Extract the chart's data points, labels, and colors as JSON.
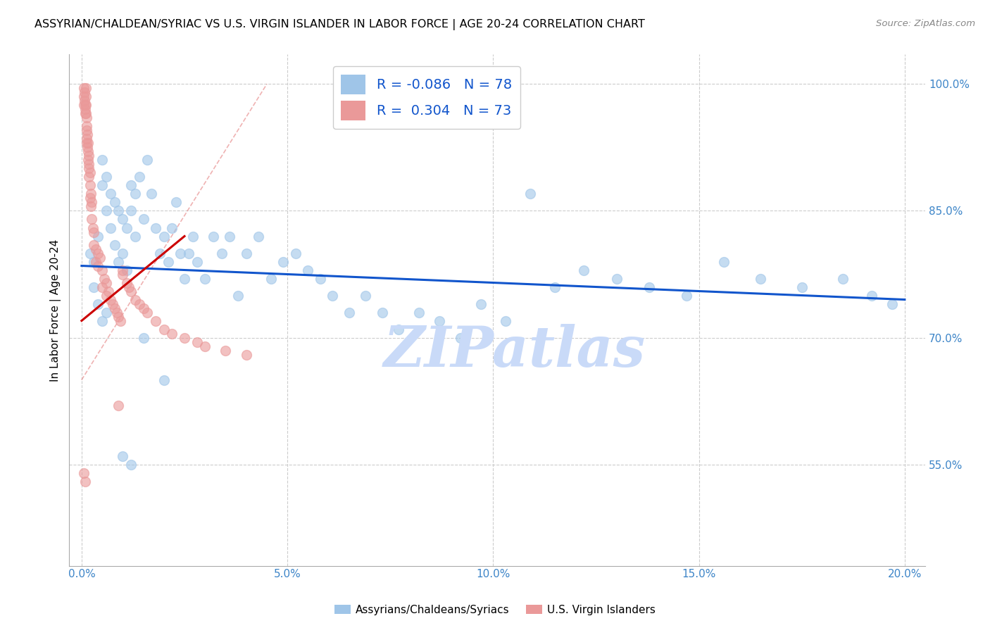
{
  "title": "ASSYRIAN/CHALDEAN/SYRIAC VS U.S. VIRGIN ISLANDER IN LABOR FORCE | AGE 20-24 CORRELATION CHART",
  "source": "Source: ZipAtlas.com",
  "xlabel_vals": [
    0.0,
    5.0,
    10.0,
    15.0,
    20.0
  ],
  "ylabel_vals": [
    55.0,
    70.0,
    85.0,
    100.0
  ],
  "ylabel_label": "In Labor Force | Age 20-24",
  "xlim": [
    -0.3,
    20.5
  ],
  "ylim": [
    43.0,
    103.5
  ],
  "R_blue": -0.086,
  "N_blue": 78,
  "R_pink": 0.304,
  "N_pink": 73,
  "blue_color": "#9fc5e8",
  "pink_color": "#ea9999",
  "trend_blue": "#1155cc",
  "trend_pink": "#cc0000",
  "dashed_color": "#e06666",
  "watermark": "ZIPatlas",
  "watermark_color": "#c9daf8",
  "legend_r_color": "#1155cc",
  "blue_scatter_x": [
    0.2,
    0.3,
    0.4,
    0.5,
    0.5,
    0.6,
    0.6,
    0.7,
    0.7,
    0.8,
    0.8,
    0.9,
    0.9,
    1.0,
    1.0,
    1.1,
    1.1,
    1.2,
    1.2,
    1.3,
    1.3,
    1.4,
    1.5,
    1.6,
    1.7,
    1.8,
    1.9,
    2.0,
    2.1,
    2.2,
    2.3,
    2.4,
    2.5,
    2.6,
    2.7,
    2.8,
    3.0,
    3.2,
    3.4,
    3.6,
    3.8,
    4.0,
    4.3,
    4.6,
    4.9,
    5.2,
    5.5,
    5.8,
    6.1,
    6.5,
    6.9,
    7.3,
    7.7,
    8.2,
    8.7,
    9.2,
    9.7,
    10.3,
    10.9,
    11.5,
    12.2,
    13.0,
    13.8,
    14.7,
    15.6,
    16.5,
    17.5,
    18.5,
    19.2,
    19.7,
    0.3,
    0.4,
    0.5,
    0.6,
    1.0,
    1.2,
    1.5,
    2.0
  ],
  "blue_scatter_y": [
    80.0,
    79.0,
    82.0,
    91.0,
    88.0,
    89.0,
    85.0,
    87.0,
    83.0,
    86.0,
    81.0,
    85.0,
    79.0,
    84.0,
    80.0,
    83.0,
    78.0,
    88.0,
    85.0,
    87.0,
    82.0,
    89.0,
    84.0,
    91.0,
    87.0,
    83.0,
    80.0,
    82.0,
    79.0,
    83.0,
    86.0,
    80.0,
    77.0,
    80.0,
    82.0,
    79.0,
    77.0,
    82.0,
    80.0,
    82.0,
    75.0,
    80.0,
    82.0,
    77.0,
    79.0,
    80.0,
    78.0,
    77.0,
    75.0,
    73.0,
    75.0,
    73.0,
    71.0,
    73.0,
    72.0,
    70.0,
    74.0,
    72.0,
    87.0,
    76.0,
    78.0,
    77.0,
    76.0,
    75.0,
    79.0,
    77.0,
    76.0,
    77.0,
    75.0,
    74.0,
    76.0,
    74.0,
    72.0,
    73.0,
    56.0,
    55.0,
    70.0,
    65.0
  ],
  "pink_scatter_x": [
    0.05,
    0.05,
    0.05,
    0.07,
    0.07,
    0.08,
    0.08,
    0.09,
    0.1,
    0.1,
    0.1,
    0.1,
    0.12,
    0.12,
    0.12,
    0.13,
    0.13,
    0.14,
    0.14,
    0.15,
    0.15,
    0.15,
    0.17,
    0.17,
    0.18,
    0.18,
    0.2,
    0.2,
    0.2,
    0.22,
    0.22,
    0.25,
    0.25,
    0.28,
    0.3,
    0.3,
    0.35,
    0.35,
    0.4,
    0.4,
    0.45,
    0.5,
    0.5,
    0.55,
    0.6,
    0.6,
    0.65,
    0.7,
    0.75,
    0.8,
    0.85,
    0.9,
    0.95,
    1.0,
    1.0,
    1.1,
    1.15,
    1.2,
    1.3,
    1.4,
    1.5,
    1.6,
    1.8,
    2.0,
    2.2,
    2.5,
    2.8,
    3.0,
    3.5,
    4.0,
    0.05,
    0.08,
    0.9
  ],
  "pink_scatter_y": [
    99.5,
    98.5,
    97.5,
    99.0,
    98.0,
    97.5,
    96.5,
    97.0,
    99.5,
    98.5,
    97.5,
    96.5,
    96.0,
    94.5,
    93.0,
    95.0,
    93.5,
    94.0,
    92.5,
    93.0,
    92.0,
    91.0,
    91.5,
    90.0,
    90.5,
    89.0,
    89.5,
    88.0,
    86.5,
    87.0,
    85.5,
    86.0,
    84.0,
    83.0,
    82.5,
    81.0,
    80.5,
    79.0,
    80.0,
    78.5,
    79.5,
    78.0,
    76.0,
    77.0,
    76.5,
    75.0,
    75.5,
    74.5,
    74.0,
    73.5,
    73.0,
    72.5,
    72.0,
    78.0,
    77.5,
    76.5,
    76.0,
    75.5,
    74.5,
    74.0,
    73.5,
    73.0,
    72.0,
    71.0,
    70.5,
    70.0,
    69.5,
    69.0,
    68.5,
    68.0,
    54.0,
    53.0,
    62.0
  ],
  "blue_trend_x": [
    0.0,
    20.0
  ],
  "blue_trend_y": [
    78.5,
    74.5
  ],
  "pink_trend_x": [
    0.0,
    2.5
  ],
  "pink_trend_y": [
    72.0,
    82.0
  ],
  "dashed_trend_x": [
    0.0,
    4.5
  ],
  "dashed_trend_y": [
    65.0,
    100.0
  ],
  "grid_color": "#cccccc",
  "bg_color": "#ffffff"
}
